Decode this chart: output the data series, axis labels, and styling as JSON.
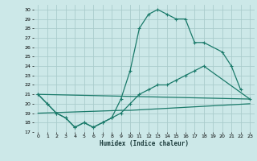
{
  "xlabel": "Humidex (Indice chaleur)",
  "bg_color": "#cce8e8",
  "grid_color": "#aacccc",
  "line_color": "#1a7a6a",
  "xlim": [
    -0.5,
    23.5
  ],
  "ylim": [
    17,
    30.5
  ],
  "xticks": [
    0,
    1,
    2,
    3,
    4,
    5,
    6,
    7,
    8,
    9,
    10,
    11,
    12,
    13,
    14,
    15,
    16,
    17,
    18,
    19,
    20,
    21,
    22,
    23
  ],
  "yticks": [
    17,
    18,
    19,
    20,
    21,
    22,
    23,
    24,
    25,
    26,
    27,
    28,
    29,
    30
  ],
  "series1_x": [
    0,
    1,
    2,
    3,
    4,
    5,
    6,
    7,
    8,
    9,
    10,
    11,
    12,
    13,
    14,
    15,
    16,
    17,
    18,
    20,
    21,
    22
  ],
  "series1_y": [
    21,
    20,
    19,
    18.5,
    17.5,
    18,
    17.5,
    18,
    18.5,
    20.5,
    23.5,
    28,
    29.5,
    30,
    29.5,
    29,
    29,
    26.5,
    26.5,
    25.5,
    24,
    21.5
  ],
  "series2_x": [
    0,
    1,
    2,
    3,
    4,
    5,
    6,
    7,
    8,
    9,
    10,
    11,
    12,
    13,
    14,
    15,
    16,
    17,
    18,
    23
  ],
  "series2_y": [
    21,
    20,
    19,
    18.5,
    17.5,
    18,
    17.5,
    18,
    18.5,
    19,
    20,
    21,
    21.5,
    22,
    22,
    22.5,
    23,
    23.5,
    24,
    20.5
  ],
  "series3_x": [
    0,
    23
  ],
  "series3_y": [
    21,
    20.5
  ],
  "series4_x": [
    0,
    9,
    10,
    23
  ],
  "series4_y": [
    19,
    19.3,
    19.3,
    20
  ]
}
